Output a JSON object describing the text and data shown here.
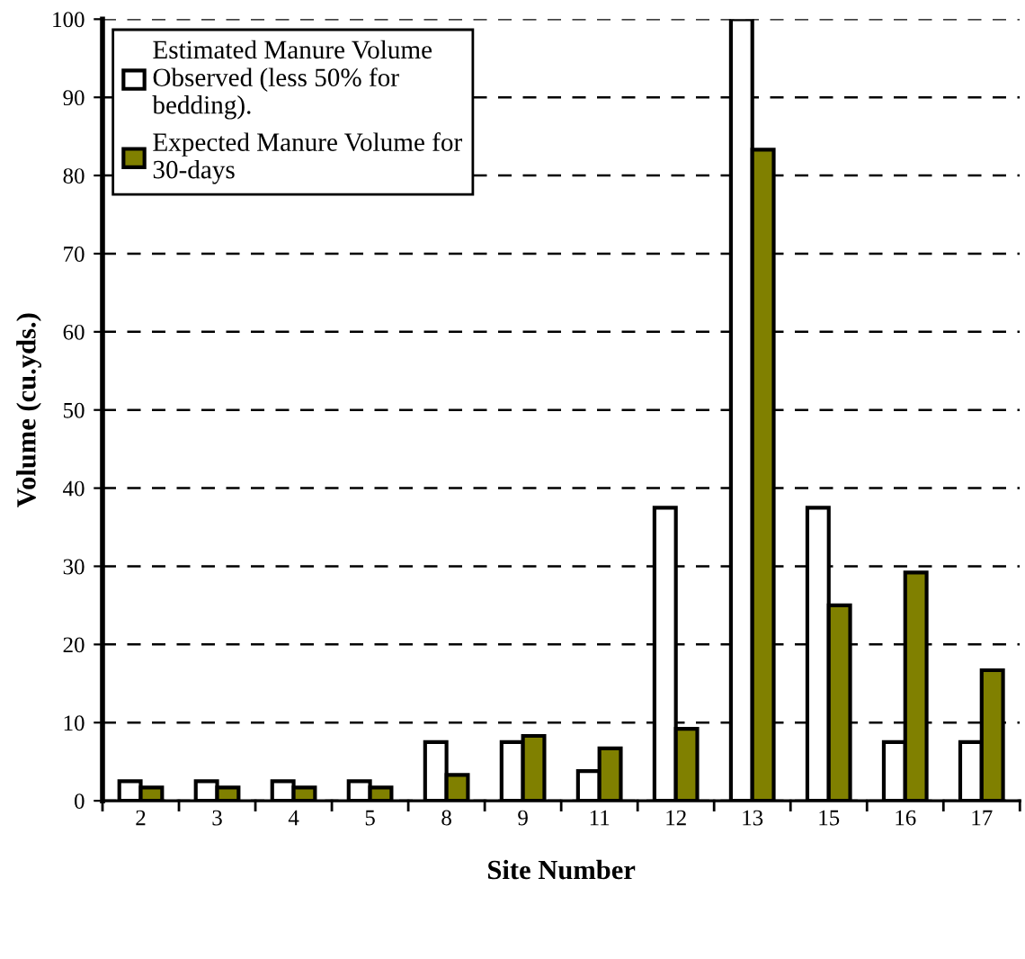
{
  "chart_data": {
    "type": "bar",
    "xlabel": "Site Number",
    "ylabel": "Volume (cu.yds.)",
    "categories": [
      "2",
      "3",
      "4",
      "5",
      "8",
      "9",
      "11",
      "12",
      "13",
      "15",
      "16",
      "17"
    ],
    "series": [
      {
        "name": "Estimated Manure Volume\nObserved (less 50% for\nbedding).",
        "color": "#ffffff",
        "values": [
          2.5,
          2.5,
          2.5,
          2.5,
          7.5,
          7.5,
          3.8,
          37.5,
          100,
          37.5,
          7.5,
          7.5
        ]
      },
      {
        "name": "Expected Manure Volume for\n30-days",
        "color": "#808000",
        "values": [
          1.7,
          1.7,
          1.7,
          1.7,
          3.3,
          8.3,
          6.7,
          9.2,
          83.3,
          25,
          29.2,
          16.7
        ]
      }
    ],
    "ylim": [
      0,
      100
    ],
    "yticks": [
      0,
      10,
      20,
      30,
      40,
      50,
      60,
      70,
      80,
      90,
      100
    ],
    "grid": "y",
    "legend": "top left"
  }
}
